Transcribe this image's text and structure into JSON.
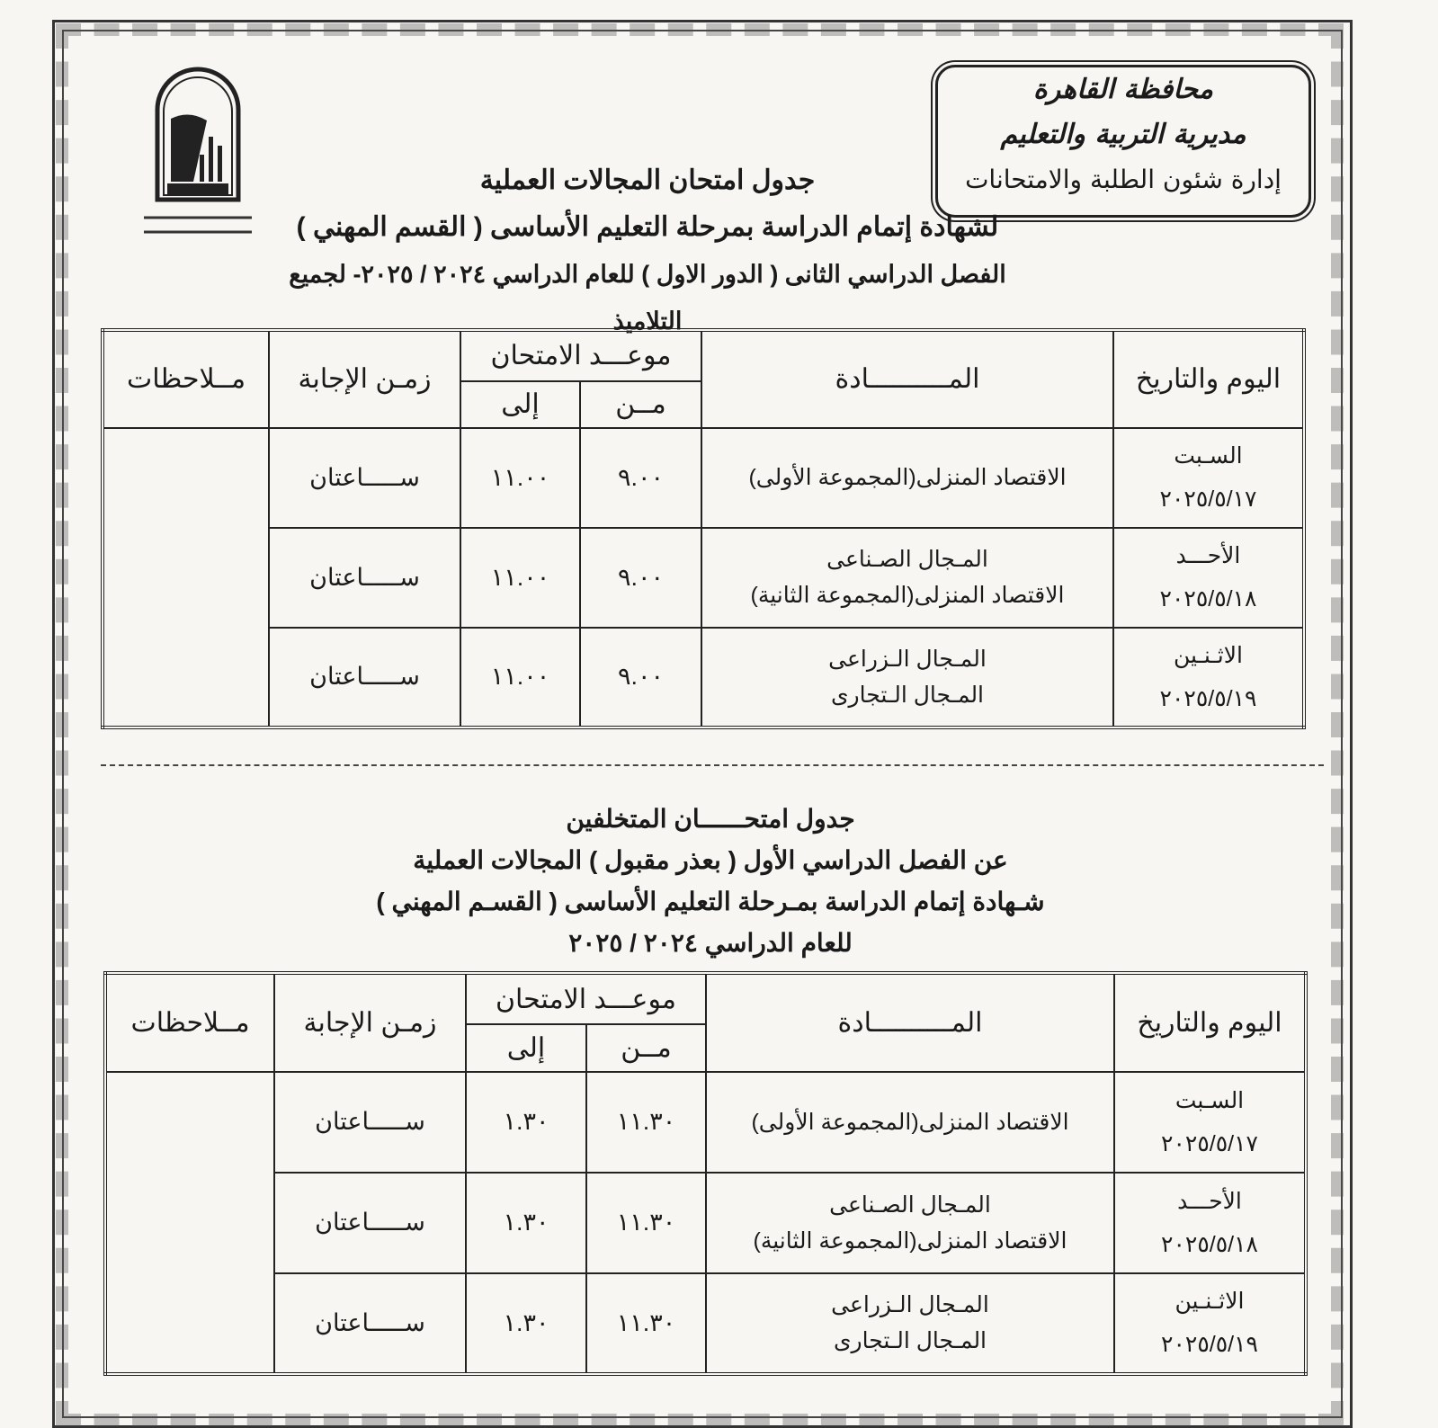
{
  "header": {
    "org_lines": [
      "محافظة القاهرة",
      "مديرية التربية والتعليم",
      "إدارة شئون الطلبة والامتحانات"
    ],
    "logo_text": "القاهرة - مديرية التربية والتعليم - Directorate of Education in Cairo"
  },
  "section1": {
    "title_lines": [
      "جدول امتحان المجالات العملية",
      "لشهادة إتمام الدراسة بمرحلة التعليم الأساسى ( القسم المهني )",
      "الفصل الدراسي الثانى ( الدور الاول ) للعام الدراسي ٢٠٢٤ / ٢٠٢٥- لجميع التلاميذ"
    ],
    "columns": {
      "day_date": "اليوم والتاريخ",
      "subject": "المــــــــــادة",
      "exam_time": "موعـــد الامتحان",
      "from": "مــن",
      "to": "إلى",
      "duration": "زمـن الإجابة",
      "notes": "مــلاحظات"
    },
    "rows": [
      {
        "day": "السـبت",
        "date": "٢٠٢٥/٥/١٧",
        "subjects": [
          "الاقتصاد المنزلى(المجموعة الأولى)"
        ],
        "from": "٩.٠٠",
        "to": "١١.٠٠",
        "duration": "ســـــاعتان"
      },
      {
        "day": "الأحـــد",
        "date": "٢٠٢٥/٥/١٨",
        "subjects": [
          "المـجال الصـناعى",
          "الاقتصاد المنزلى(المجموعة الثانية)"
        ],
        "from": "٩.٠٠",
        "to": "١١.٠٠",
        "duration": "ســـــاعتان"
      },
      {
        "day": "الاثـنـين",
        "date": "٢٠٢٥/٥/١٩",
        "subjects": [
          "المـجال الـزراعى",
          "المـجال الـتجارى"
        ],
        "from": "٩.٠٠",
        "to": "١١.٠٠",
        "duration": "ســـــاعتان"
      }
    ],
    "notes": ""
  },
  "section2": {
    "title_lines": [
      "جدول امتحــــــان المتخلفين",
      "عن الفصل الدراسي الأول ( بعذر مقبول ) المجالات العملية",
      "شـهادة إتمام الدراسة بمـرحلة التعليم الأساسى ( القسـم المهني )",
      "للعام الدراسي ٢٠٢٤ / ٢٠٢٥"
    ],
    "columns": {
      "day_date": "اليوم والتاريخ",
      "subject": "المــــــــــادة",
      "exam_time": "موعـــد الامتحان",
      "from": "مــن",
      "to": "إلى",
      "duration": "زمـن الإجابة",
      "notes": "مــلاحظات"
    },
    "rows": [
      {
        "day": "السـبت",
        "date": "٢٠٢٥/٥/١٧",
        "subjects": [
          "الاقتصاد المنزلى(المجموعة الأولى)"
        ],
        "from": "١١.٣٠",
        "to": "١.٣٠",
        "duration": "ســـــاعتان"
      },
      {
        "day": "الأحـــد",
        "date": "٢٠٢٥/٥/١٨",
        "subjects": [
          "المـجال الصـناعى",
          "الاقتصاد المنزلى(المجموعة الثانية)"
        ],
        "from": "١١.٣٠",
        "to": "١.٣٠",
        "duration": "ســـــاعتان"
      },
      {
        "day": "الاثـنـين",
        "date": "٢٠٢٥/٥/١٩",
        "subjects": [
          "المـجال الـزراعى",
          "المـجال الـتجارى"
        ],
        "from": "١١.٣٠",
        "to": "١.٣٠",
        "duration": "ســـــاعتان"
      }
    ],
    "notes": ""
  }
}
